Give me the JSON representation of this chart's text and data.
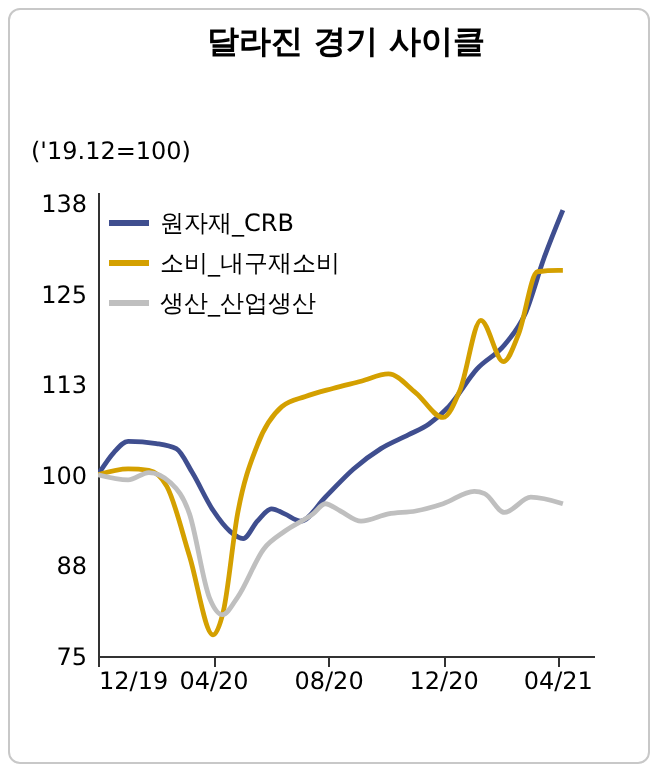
{
  "chart_data": {
    "type": "line",
    "title": "달라진 경기 사이클",
    "ylabel": "('19.12=100)",
    "xlim": [
      "2019-12-01",
      "2021-05-10"
    ],
    "xticks": [
      {
        "value": "2019-12-01",
        "label": "12/19"
      },
      {
        "value": "2020-04-01",
        "label": "04/20"
      },
      {
        "value": "2020-08-01",
        "label": "08/20"
      },
      {
        "value": "2020-12-01",
        "label": "12/20"
      },
      {
        "value": "2021-04-01",
        "label": "04/21"
      }
    ],
    "ylim": [
      75,
      139
    ],
    "yticks": [
      75,
      {
        "value": 87.5,
        "label": "88"
      },
      100,
      {
        "value": 112.5,
        "label": "113"
      },
      125,
      {
        "value": 137.5,
        "label": "138"
      }
    ],
    "grid": false,
    "legend": "top left",
    "marker": "none",
    "line_style": "solid",
    "series": [
      {
        "name": "원자재_CRB",
        "color": "#3f4e8f",
        "x": [
          "2019-12-01",
          "2019-12-18",
          "2020-01-02",
          "2020-02-01",
          "2020-02-22",
          "2020-03-10",
          "2020-04-01",
          "2020-04-19",
          "2020-05-03",
          "2020-05-18",
          "2020-06-02",
          "2020-06-16",
          "2020-07-03",
          "2020-07-29",
          "2020-08-28",
          "2020-09-26",
          "2020-10-25",
          "2020-11-16",
          "2020-12-07",
          "2021-01-06",
          "2021-02-04",
          "2021-02-26",
          "2021-03-18",
          "2021-04-07"
        ],
        "values": [
          100,
          103.1,
          104.6,
          104.3,
          103.6,
          100.3,
          95.1,
          92.2,
          91.2,
          93.6,
          95.3,
          94.6,
          93.6,
          96.9,
          100.8,
          103.6,
          105.5,
          107,
          109.4,
          114.6,
          117.9,
          122.2,
          129.9,
          136.5
        ]
      },
      {
        "name": "소비_내구재소비",
        "color": "#d4a000",
        "x": [
          "2019-12-01",
          "2020-01-02",
          "2020-01-24",
          "2020-02-12",
          "2020-03-07",
          "2020-04-01",
          "2020-04-12",
          "2020-04-27",
          "2020-05-18",
          "2020-06-13",
          "2020-07-08",
          "2020-08-06",
          "2020-09-05",
          "2020-10-04",
          "2020-11-02",
          "2020-12-01",
          "2020-12-19",
          "2021-01-10",
          "2021-02-03",
          "2021-02-19",
          "2021-03-11",
          "2021-04-02",
          "2021-04-07"
        ],
        "values": [
          100,
          100.8,
          100.6,
          98.4,
          88.8,
          77.9,
          81.2,
          94.6,
          104.1,
          109.4,
          110.8,
          111.9,
          112.9,
          113.9,
          111.3,
          107.9,
          111.7,
          121.3,
          115.6,
          119.4,
          128,
          128.2,
          128.2
        ]
      },
      {
        "name": "생산_산업생산",
        "color": "#bfbfbf",
        "x": [
          "2019-12-01",
          "2020-01-02",
          "2020-01-24",
          "2020-02-16",
          "2020-03-07",
          "2020-03-28",
          "2020-04-11",
          "2020-04-27",
          "2020-05-25",
          "2020-06-16",
          "2020-07-16",
          "2020-07-29",
          "2020-08-14",
          "2020-09-05",
          "2020-10-04",
          "2020-11-02",
          "2020-12-01",
          "2021-01-03",
          "2021-01-14",
          "2021-02-04",
          "2021-03-04",
          "2021-04-07"
        ],
        "values": [
          100,
          99.3,
          100.3,
          98.9,
          94.6,
          83.1,
          80.7,
          83.1,
          89.8,
          92.2,
          94.6,
          96,
          95,
          93.6,
          94.6,
          95,
          96,
          97.7,
          97.4,
          94.8,
          96.9,
          96
        ]
      }
    ]
  }
}
